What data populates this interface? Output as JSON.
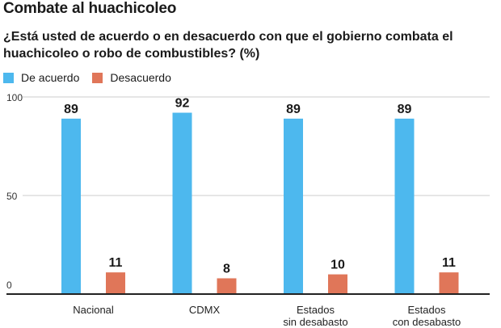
{
  "title": "Combate al huachicoleo",
  "subtitle": "¿Está usted de acuerdo o en desacuerdo con que el gobierno combata el huachicoleo o robo de combustibles? (%)",
  "colors": {
    "acuerdo": "#4db8ee",
    "desacuerdo": "#e07659",
    "grid": "#cccccc",
    "axis": "#222222"
  },
  "chart_data": {
    "type": "bar",
    "categories": [
      [
        "Nacional"
      ],
      [
        "CDMX"
      ],
      [
        "Estados",
        "sin desabasto"
      ],
      [
        "Estados",
        "con desabasto"
      ]
    ],
    "series": [
      {
        "name": "De acuerdo",
        "values": [
          89,
          92,
          89,
          89
        ]
      },
      {
        "name": "Desacuerdo",
        "values": [
          11,
          8,
          10,
          11
        ]
      }
    ],
    "ylim": [
      0,
      100
    ],
    "yticks": [
      0,
      50,
      100
    ],
    "grid": true,
    "legend": "top-left"
  }
}
